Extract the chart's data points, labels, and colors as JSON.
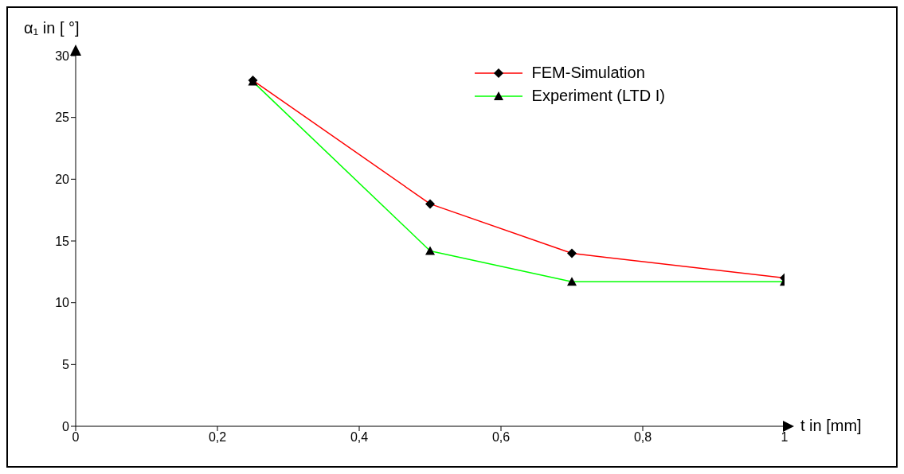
{
  "chart_data": {
    "type": "line",
    "xlabel": "t in [mm]",
    "ylabel": "α₁ in [ °]",
    "x": [
      0.25,
      0.5,
      0.7,
      1
    ],
    "series": [
      {
        "name": "FEM-Simulation",
        "color": "#ff0000",
        "marker": "diamond",
        "values": [
          28,
          18,
          14,
          12
        ]
      },
      {
        "name": "Experiment (LTD I)",
        "color": "#00ff00",
        "marker": "triangle",
        "values": [
          27.9,
          14.2,
          11.7,
          11.7
        ]
      }
    ],
    "xlim": [
      0,
      1
    ],
    "xticks": [
      0,
      {
        "value": 0.2,
        "label": "0,2"
      },
      {
        "value": 0.4,
        "label": "0,4"
      },
      {
        "value": 0.6,
        "label": "0,6"
      },
      {
        "value": 0.8,
        "label": "0,8"
      },
      1
    ],
    "ylim": [
      0,
      30
    ],
    "yticks": [
      0,
      5,
      10,
      15,
      20,
      25,
      30
    ],
    "grid": false,
    "legend": "top right"
  }
}
